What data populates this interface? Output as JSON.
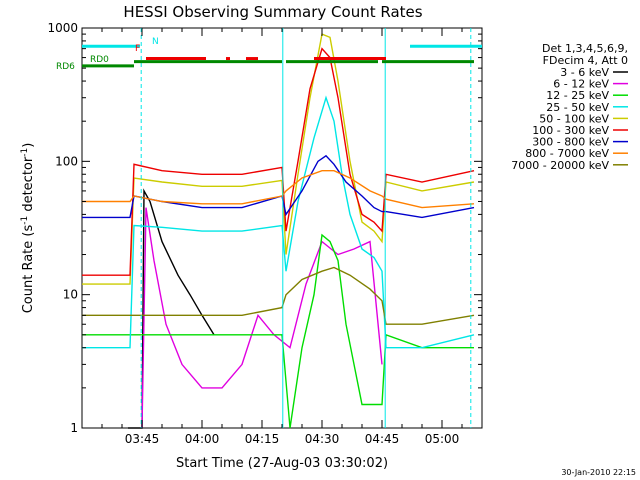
{
  "chart_data": {
    "type": "line",
    "title": "HESSI Observing Summary Count Rates",
    "xlabel": "Start Time (27-Aug-03 03:30:02)",
    "ylabel_main": "Count Rate (s",
    "ylabel_sup1": "-1",
    "ylabel_mid": " detector",
    "ylabel_sup2": "-1",
    "ylabel_end": ")",
    "y_scale": "log",
    "ylim": [
      1,
      1000
    ],
    "xlim": [
      0,
      100
    ],
    "x_unit": "minutes since 03:30:02",
    "y_ticks": [
      {
        "value": 1,
        "label": "1"
      },
      {
        "value": 10,
        "label": "10"
      },
      {
        "value": 100,
        "label": "100"
      },
      {
        "value": 1000,
        "label": "1000"
      }
    ],
    "x_ticks": [
      {
        "value": 15,
        "label": "03:45"
      },
      {
        "value": 30,
        "label": "04:00"
      },
      {
        "value": 45,
        "label": "04:15"
      },
      {
        "value": 60,
        "label": "04:30"
      },
      {
        "value": 75,
        "label": "04:45"
      },
      {
        "value": 90,
        "label": "05:00"
      }
    ],
    "legend": {
      "placement": "right",
      "header": [
        "Det 1,3,4,5,6,9,",
        "FDecim 4, Att 0"
      ],
      "entries": [
        {
          "label": "3 - 6 keV",
          "color": "#000000"
        },
        {
          "label": "6 - 12 keV",
          "color": "#e000e0"
        },
        {
          "label": "12 - 25 keV",
          "color": "#00dd00"
        },
        {
          "label": "25 - 50 keV",
          "color": "#00e6e6"
        },
        {
          "label": "50 - 100 keV",
          "color": "#cccc00"
        },
        {
          "label": "100 - 300 keV",
          "color": "#ee0000"
        },
        {
          "label": "300 - 800 keV",
          "color": "#0000cc"
        },
        {
          "label": "800 - 7000 keV",
          "color": "#ff8000"
        },
        {
          "label": "7000 - 20000 keV",
          "color": "#808000"
        }
      ]
    },
    "flag_labels": {
      "n": "N",
      "f": "F",
      "rd0": "RD0",
      "rd6": "RD6"
    },
    "footer_date": "30-Jan-2010 22:15",
    "series": [
      {
        "name": "3 - 6 keV",
        "color": "#000000",
        "x": [
          11.5,
          15,
          15.5,
          17,
          20,
          24,
          27,
          30,
          33
        ],
        "y": [
          1,
          1,
          60,
          50,
          25,
          14,
          10,
          7,
          5
        ]
      },
      {
        "name": "6 - 12 keV",
        "color": "#e000e0",
        "x": [
          15,
          16,
          18,
          21,
          25,
          30,
          35,
          40,
          44,
          48,
          52,
          56,
          60,
          64,
          68,
          72,
          75
        ],
        "y": [
          1,
          45,
          18,
          6,
          3,
          2,
          2,
          3,
          7,
          5,
          4,
          12,
          25,
          20,
          22,
          25,
          3
        ]
      },
      {
        "name": "12 - 25 keV",
        "color": "#00dd00",
        "x": [
          0,
          12,
          13,
          20,
          30,
          40,
          50,
          52,
          55,
          58,
          60,
          62,
          64,
          66,
          70,
          73,
          75,
          76,
          85,
          98
        ],
        "y": [
          5,
          5,
          5,
          5,
          5,
          5,
          5,
          1,
          4,
          10,
          28,
          25,
          18,
          6,
          1.5,
          1.5,
          1.5,
          5,
          4,
          4
        ]
      },
      {
        "name": "25 - 50 keV",
        "color": "#00e6e6",
        "x": [
          0,
          12,
          13,
          20,
          30,
          40,
          50,
          51,
          54,
          58,
          61,
          63,
          65,
          67,
          70,
          73,
          75,
          76,
          85,
          98
        ],
        "y": [
          4,
          4,
          33,
          32,
          30,
          30,
          33,
          15,
          50,
          150,
          300,
          200,
          80,
          40,
          22,
          19,
          15,
          4,
          4,
          5
        ]
      },
      {
        "name": "50 - 100 keV",
        "color": "#cccc00",
        "x": [
          0,
          12,
          13,
          20,
          30,
          40,
          50,
          51,
          54,
          57,
          60,
          62,
          64,
          67,
          70,
          73,
          75,
          76,
          85,
          98
        ],
        "y": [
          12,
          12,
          75,
          70,
          65,
          65,
          72,
          20,
          80,
          300,
          900,
          850,
          400,
          100,
          35,
          30,
          25,
          70,
          60,
          70
        ]
      },
      {
        "name": "100 - 300 keV",
        "color": "#ee0000",
        "x": [
          0,
          12,
          13,
          20,
          30,
          40,
          50,
          51,
          54,
          57,
          60,
          62,
          64,
          67,
          70,
          73,
          75,
          76,
          85,
          98
        ],
        "y": [
          14,
          14,
          95,
          85,
          80,
          80,
          90,
          30,
          100,
          350,
          700,
          600,
          300,
          80,
          40,
          35,
          30,
          80,
          70,
          85
        ]
      },
      {
        "name": "300 - 800 keV",
        "color": "#0000cc",
        "x": [
          0,
          12,
          13,
          20,
          30,
          40,
          50,
          51,
          55,
          59,
          61,
          63,
          66,
          70,
          73,
          75,
          76,
          85,
          98
        ],
        "y": [
          38,
          38,
          55,
          50,
          45,
          45,
          55,
          40,
          60,
          100,
          110,
          95,
          70,
          55,
          45,
          42,
          42,
          38,
          45
        ]
      },
      {
        "name": "800 - 7000 keV",
        "color": "#ff8000",
        "x": [
          0,
          12,
          13,
          20,
          30,
          40,
          50,
          51,
          55,
          60,
          63,
          67,
          72,
          75,
          76,
          85,
          98
        ],
        "y": [
          50,
          50,
          55,
          50,
          48,
          48,
          55,
          60,
          75,
          85,
          85,
          75,
          60,
          55,
          52,
          45,
          48
        ]
      },
      {
        "name": "7000 - 20000 keV",
        "color": "#808000",
        "x": [
          0,
          12,
          13,
          20,
          30,
          40,
          50,
          51,
          55,
          60,
          63,
          67,
          72,
          75,
          76,
          85,
          98
        ],
        "y": [
          7,
          7,
          7,
          7,
          7,
          7,
          8,
          10,
          13,
          15,
          16,
          14,
          11,
          9,
          6,
          6,
          7
        ]
      }
    ],
    "flag_bars": [
      {
        "label_key": "n",
        "color": "#00e6e6",
        "y_value": 730,
        "segments": [
          [
            0,
            14.5
          ],
          [
            82,
            100
          ]
        ]
      },
      {
        "label_key": "f",
        "color": "#ee0000",
        "y_value": 590,
        "segments": [
          [
            16,
            31
          ],
          [
            36,
            37
          ],
          [
            41,
            44
          ],
          [
            58,
            76
          ]
        ]
      },
      {
        "label_key": "rd0",
        "color": "#008800",
        "y_value": 560,
        "segments": [
          [
            13,
            50
          ],
          [
            51,
            74
          ],
          [
            75,
            98
          ]
        ]
      },
      {
        "label_key": "rd6",
        "color": "#008800",
        "y_value": 520,
        "segments": [
          [
            0,
            13
          ]
        ]
      }
    ],
    "vertical_lines": [
      {
        "x": 14.8,
        "color": "#00e6e6",
        "style": "dashed"
      },
      {
        "x": 50.2,
        "color": "#00e6e6",
        "style": "solid"
      },
      {
        "x": 75.8,
        "color": "#00e6e6",
        "style": "solid"
      },
      {
        "x": 97.2,
        "color": "#00e6e6",
        "style": "dashed"
      }
    ]
  }
}
